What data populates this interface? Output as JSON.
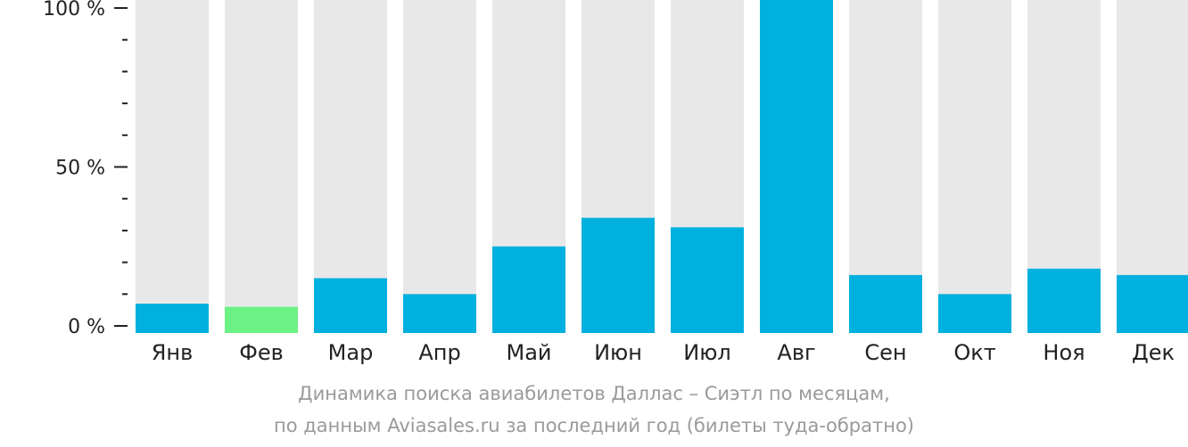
{
  "chart_data": {
    "type": "bar",
    "categories": [
      "Янв",
      "Фев",
      "Мар",
      "Апр",
      "Май",
      "Июн",
      "Июл",
      "Авг",
      "Сен",
      "Окт",
      "Ноя",
      "Дек"
    ],
    "values": [
      7,
      6,
      15,
      10,
      25,
      34,
      31,
      100,
      16,
      10,
      18,
      16
    ],
    "y_ticks": [
      {
        "value": 0,
        "label": "0 %"
      },
      {
        "value": 50,
        "label": "50 %"
      },
      {
        "value": 100,
        "label": "100 %"
      }
    ],
    "ylim": [
      0,
      100
    ],
    "highlight_index": 1,
    "colors": {
      "bar": "#00b0de",
      "highlight": "#6cf184",
      "background_bar": "#e8e8e8",
      "axis": "#222222"
    }
  },
  "caption": {
    "line1": "Динамика поиска авиабилетов Даллас – Сиэтл по месяцам,",
    "line2": "по данным Aviasales.ru за последний год (билеты туда-обратно)"
  }
}
